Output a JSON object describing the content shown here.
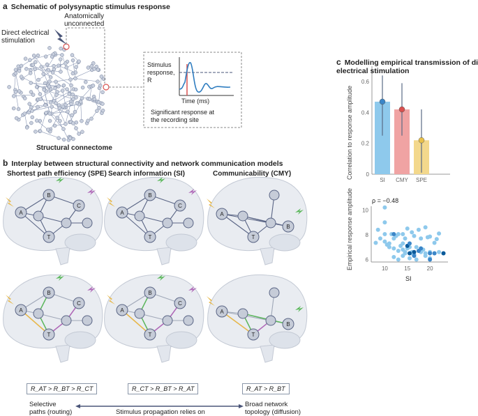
{
  "panel_a": {
    "letter": "a",
    "title": "Schematic of polysynaptic stimulus response",
    "direct": "Direct electrical\nstimulation",
    "unconnected": "Anatomically\nunconnected",
    "connectome": "Structural connectome",
    "inset_ylabel": "Stimulus response, R",
    "inset_xlabel": "Time (ms)",
    "inset_caption": "Significant response at\nthe recording site"
  },
  "panel_b": {
    "letter": "b",
    "title": "Interplay between structural connectivity and network communication models",
    "columns": [
      {
        "heading": "Shortest path efficiency (SPE)",
        "order": "R_AT > R_BT > R_CT"
      },
      {
        "heading": "Search information (SI)",
        "order": "R_CT > R_BT > R_AT"
      },
      {
        "heading": "Communicability (CMY)",
        "order": "R_AT > R_BT"
      }
    ],
    "left_label": "Selective\npaths (routing)",
    "right_label": "Broad network\ntopology (diffusion)",
    "arrow_label": "Stimulus propagation relies on",
    "node_labels": [
      "A",
      "B",
      "C",
      "T"
    ]
  },
  "panel_c": {
    "letter": "c",
    "title": "Modelling empirical transmission of direct\nelectrical stimulation"
  },
  "chart_data": [
    {
      "type": "bar",
      "categories": [
        "SI",
        "CMY",
        "SPE"
      ],
      "values": [
        0.47,
        0.42,
        0.22
      ],
      "error_low": [
        0.25,
        0.25,
        0.01
      ],
      "error_high": [
        0.64,
        0.59,
        0.42
      ],
      "colors": [
        "#8ec9ec",
        "#f0a3a3",
        "#f3d88c"
      ],
      "point_colors": [
        "#3b86c8",
        "#d9504f",
        "#e8c04a"
      ],
      "ylabel": "Correlation to response amplitude",
      "ylim": [
        0,
        0.7
      ],
      "yticks": [
        "0",
        "0.2",
        "0.4",
        "0.6"
      ]
    },
    {
      "type": "scatter",
      "annotation": "ρ = −0.48",
      "xlabel": "SI",
      "ylabel": "Empirical response amplitude",
      "xlim": [
        7,
        24
      ],
      "ylim": [
        5.8,
        10.3
      ],
      "xticks": [
        "10",
        "15",
        "20"
      ],
      "yticks": [
        "6",
        "8",
        "10"
      ],
      "points": [
        [
          10,
          10.2
        ],
        [
          10,
          9.0
        ],
        [
          8.5,
          8.4
        ],
        [
          10,
          8.05
        ],
        [
          9,
          7.7
        ],
        [
          8,
          7.35
        ],
        [
          10,
          7.45
        ],
        [
          11,
          7.3
        ],
        [
          11.5,
          8.05
        ],
        [
          12,
          7.7
        ],
        [
          12.5,
          7.9
        ],
        [
          13,
          8.05
        ],
        [
          14,
          8.05
        ],
        [
          14.5,
          7.7
        ],
        [
          14,
          7.3
        ],
        [
          15,
          8.5
        ],
        [
          16,
          8.2
        ],
        [
          16.5,
          7.9
        ],
        [
          17.5,
          8.4
        ],
        [
          19,
          8.6
        ],
        [
          18,
          7.7
        ],
        [
          19.5,
          7.8
        ],
        [
          20,
          7.85
        ],
        [
          21.5,
          7.65
        ],
        [
          22,
          8.1
        ],
        [
          21,
          7.35
        ],
        [
          10.5,
          7.2
        ],
        [
          11,
          7.0
        ],
        [
          12,
          6.9
        ],
        [
          13,
          6.7
        ],
        [
          13.5,
          7.1
        ],
        [
          14,
          6.8
        ],
        [
          14.5,
          6.6
        ],
        [
          15,
          6.9
        ],
        [
          15.5,
          7.0
        ],
        [
          16,
          6.6
        ],
        [
          17,
          7.0
        ],
        [
          17.5,
          6.7
        ],
        [
          18,
          6.6
        ],
        [
          18.5,
          6.8
        ],
        [
          19,
          6.5
        ],
        [
          20,
          6.6
        ],
        [
          21,
          6.5
        ],
        [
          22,
          6.6
        ],
        [
          23,
          6.5
        ],
        [
          12,
          6.2
        ],
        [
          13,
          6.0
        ],
        [
          14,
          6.3
        ],
        [
          15.5,
          6.1
        ],
        [
          17,
          6.0
        ],
        [
          19,
          6.3
        ],
        [
          20,
          6.1
        ],
        [
          16,
          6.5
        ],
        [
          16.5,
          6.4
        ],
        [
          14.5,
          6.5
        ]
      ],
      "dark_points": [
        [
          15,
          7.1
        ],
        [
          15.5,
          7.3
        ],
        [
          12,
          8.05
        ],
        [
          16.5,
          6.6
        ],
        [
          17.5,
          6.7
        ],
        [
          18,
          6.9
        ],
        [
          15.5,
          6.5
        ],
        [
          20,
          6.5
        ],
        [
          21,
          6.5
        ],
        [
          23,
          6.5
        ],
        [
          16.5,
          6.3
        ],
        [
          20,
          6.0
        ]
      ]
    }
  ]
}
